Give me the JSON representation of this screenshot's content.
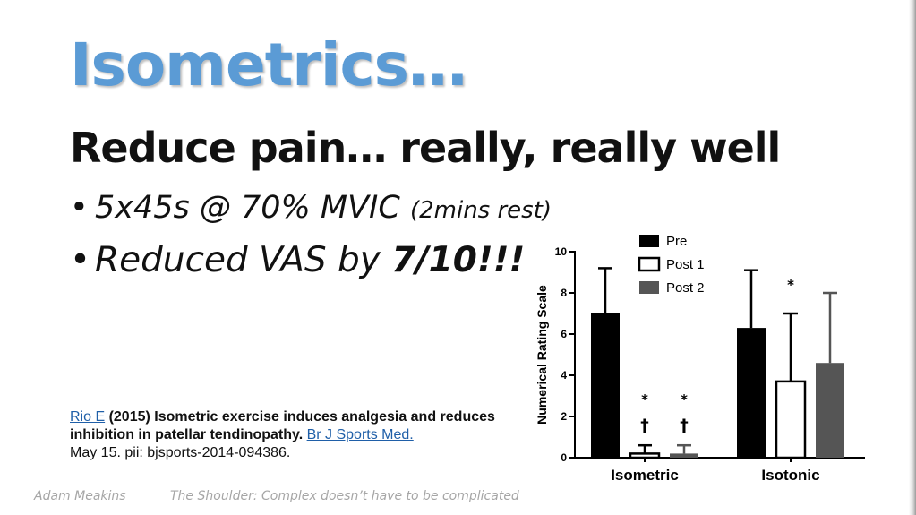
{
  "slide": {
    "title": "Isometrics…",
    "headline": "Reduce pain… really, really well",
    "bullets": [
      {
        "marker": "•",
        "text": "5x45s @ 70% MVIC",
        "note": "(2mins rest)"
      },
      {
        "marker": "•",
        "text": "Reduced VAS by",
        "emphasis": "7/10!!!"
      }
    ],
    "reference": {
      "author_link": "Rio E",
      "year": "(2015)",
      "title": "Isometric exercise induces analgesia and reduces inhibition in patellar tendinopathy.",
      "journal_link": "Br J Sports Med.",
      "details": "May 15. pii: bjsports-2014-094386."
    },
    "footer": {
      "author": "Adam Meakins",
      "tagline": "The Shoulder: Complex doesn’t have to be complicated"
    }
  },
  "chart_data": {
    "type": "bar",
    "title": "",
    "xlabel": "",
    "ylabel": "Numerical Rating Scale",
    "ylim": [
      0,
      10
    ],
    "yticks": [
      "0",
      "2",
      "4",
      "6",
      "8",
      "10"
    ],
    "categories": [
      "Isometric",
      "Isotonic"
    ],
    "legend_position": "top",
    "series": [
      {
        "name": "Pre",
        "fill": "#000000",
        "values": [
          7.0,
          6.3
        ],
        "errors": [
          2.2,
          2.8
        ]
      },
      {
        "name": "Post 1",
        "fill": "#ffffff",
        "values": [
          0.2,
          3.7
        ],
        "errors": [
          0.4,
          3.3
        ]
      },
      {
        "name": "Post 2",
        "fill": "#555555",
        "values": [
          0.2,
          4.6
        ],
        "errors": [
          0.4,
          3.4
        ]
      }
    ],
    "annotations": [
      {
        "category": "Isometric",
        "series": "Post 1",
        "marks": [
          "*",
          "†"
        ]
      },
      {
        "category": "Isometric",
        "series": "Post 2",
        "marks": [
          "*",
          "†"
        ]
      },
      {
        "category": "Isotonic",
        "series": "Post 1",
        "marks": [
          "*"
        ]
      }
    ]
  }
}
